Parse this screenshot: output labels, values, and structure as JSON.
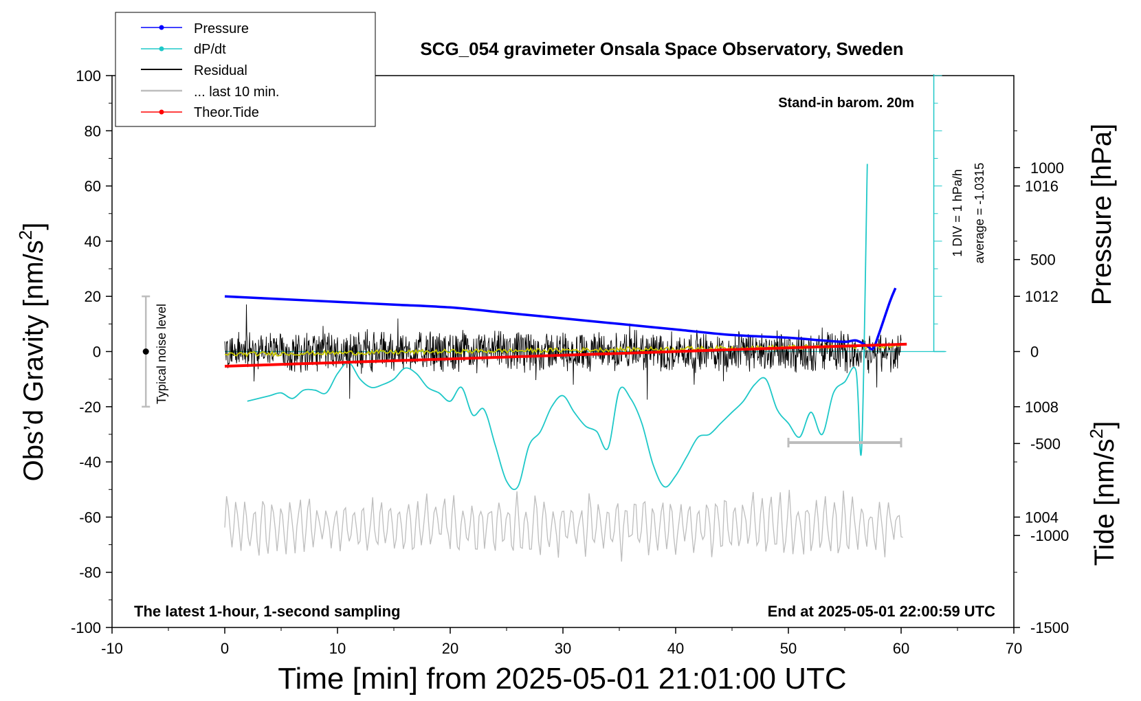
{
  "chart_data": {
    "type": "line",
    "title": "SCG_054 gravimeter Onsala Space Observatory, Sweden",
    "xlabel": "Time [min] from 2025-05-01 21:01:00 UTC",
    "ylabel_left": "Obs’d Gravity [nm/s",
    "ylabel_left_sup": "2",
    "ylabel_left_end": "]",
    "ylabel_right_pressure": "Pressure [hPa]",
    "ylabel_right_tide": "Tide [nm/s",
    "ylabel_right_tide_sup": "2",
    "ylabel_right_tide_end": "]",
    "xlim": [
      -10,
      70
    ],
    "ylim": [
      -100,
      100
    ],
    "x_ticks": [
      "-10",
      "0",
      "10",
      "20",
      "30",
      "40",
      "50",
      "60",
      "70"
    ],
    "y_ticks": [
      "-100",
      "-80",
      "-60",
      "-40",
      "-20",
      "0",
      "20",
      "40",
      "60",
      "80",
      "100"
    ],
    "pressure_ticks": [
      "1004",
      "1008",
      "1012",
      "1016"
    ],
    "pressure_tick_values": [
      1004,
      1008,
      1012,
      1016
    ],
    "pressure_ylim": [
      1000,
      1020
    ],
    "tide_ticks": [
      "-1500",
      "-1000",
      "-500",
      "0",
      "500",
      "1000"
    ],
    "tide_tick_values": [
      -1500,
      -1000,
      -500,
      0,
      500,
      1000
    ],
    "tide_ylim": [
      -1500,
      1500
    ],
    "grid": false,
    "legend_position": "top-left",
    "annotations": {
      "stand_in": "Stand-in barom. 20m",
      "div_note": "1 DIV = 1 hPa/h",
      "average_note": "average = -1.0315",
      "noise_label": "Typical noise level",
      "bottom_left": "The latest 1-hour, 1-second sampling",
      "bottom_right": "End at 2025-05-01 22:00:59 UTC"
    },
    "colors": {
      "pressure": "#0000ff",
      "dpdt": "#1ec8c8",
      "residual": "#000000",
      "last10": "#bdbdbd",
      "tide": "#ff0000",
      "residual_smooth": "#c8c800"
    },
    "series": [
      {
        "name": "Pressure",
        "x": [
          0,
          5,
          10,
          15,
          20,
          25,
          30,
          35,
          40,
          45,
          50,
          53,
          55,
          56,
          57,
          57.5,
          58,
          59,
          59.5
        ],
        "values": [
          1012.0,
          1011.9,
          1011.8,
          1011.7,
          1011.6,
          1011.4,
          1011.2,
          1011.0,
          1010.8,
          1010.6,
          1010.5,
          1010.4,
          1010.35,
          1010.4,
          1010.2,
          1010.1,
          1010.6,
          1011.8,
          1012.3
        ]
      },
      {
        "name": "dP/dt",
        "x": [
          2,
          3,
          4,
          5,
          6,
          7,
          8,
          9,
          10,
          11,
          12,
          13,
          14,
          15,
          16,
          17,
          18,
          19,
          20,
          21,
          22,
          23,
          24,
          25,
          26,
          27,
          28,
          29,
          30,
          31,
          32,
          33,
          34,
          35,
          36,
          37,
          38,
          39,
          40,
          41,
          42,
          43,
          44,
          45,
          46,
          47,
          48,
          49,
          50,
          51,
          52,
          53,
          54,
          55,
          56,
          56.5,
          57
        ],
        "values": [
          1008.2,
          1008.3,
          1008.4,
          1008.5,
          1008.3,
          1008.6,
          1008.6,
          1008.5,
          1009.2,
          1009.6,
          1009.0,
          1008.7,
          1008.8,
          1009.0,
          1009.4,
          1009.2,
          1008.7,
          1008.5,
          1008.2,
          1008.7,
          1007.7,
          1007.9,
          1006.6,
          1005.3,
          1005.1,
          1006.6,
          1007.1,
          1008.0,
          1008.4,
          1007.8,
          1007.3,
          1007.1,
          1006.5,
          1008.6,
          1008.3,
          1007.4,
          1005.9,
          1005.1,
          1005.5,
          1006.2,
          1006.9,
          1007.0,
          1007.4,
          1007.8,
          1008.2,
          1008.8,
          1009.0,
          1007.9,
          1007.4,
          1006.9,
          1007.8,
          1007.0,
          1008.5,
          1008.9,
          1009.3,
          1006.5,
          1016.8
        ]
      },
      {
        "name": "Residual",
        "x": [
          0,
          60
        ],
        "amplitude": 7,
        "values": [
          0,
          0
        ]
      },
      {
        "name": "... last 10 min.",
        "x": [
          50,
          60
        ],
        "values": [
          -33,
          -33
        ]
      },
      {
        "name": "Theor.Tide",
        "x": [
          0,
          10,
          20,
          30,
          40,
          50,
          60.5
        ],
        "tide_values": [
          -80,
          -60,
          -40,
          -20,
          0,
          20,
          40
        ]
      }
    ],
    "noise_level": {
      "x": -7,
      "center": 0,
      "low": -20,
      "high": 20
    }
  }
}
